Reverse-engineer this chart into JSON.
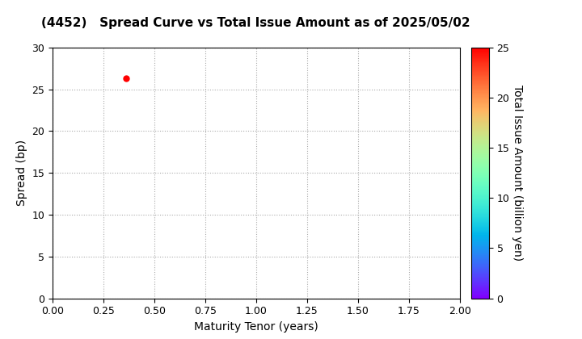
{
  "title": "(4452)   Spread Curve vs Total Issue Amount as of 2025/05/02",
  "xlabel": "Maturity Tenor (years)",
  "ylabel": "Spread (bp)",
  "colorbar_label": "Total Issue Amount (billion yen)",
  "xlim": [
    0.0,
    2.0
  ],
  "ylim": [
    0,
    30
  ],
  "xticks": [
    0.0,
    0.25,
    0.5,
    0.75,
    1.0,
    1.25,
    1.5,
    1.75,
    2.0
  ],
  "yticks": [
    0,
    5,
    10,
    15,
    20,
    25,
    30
  ],
  "colorbar_ticks": [
    0,
    5,
    10,
    15,
    20,
    25
  ],
  "colorbar_max": 25,
  "scatter_x": [
    0.36
  ],
  "scatter_y": [
    26.3
  ],
  "scatter_color": [
    25
  ],
  "scatter_size": 25,
  "grid_color": "#aaaaaa",
  "background_color": "#ffffff",
  "title_fontsize": 11,
  "label_fontsize": 10,
  "tick_fontsize": 9,
  "colorbar_fontsize": 9
}
